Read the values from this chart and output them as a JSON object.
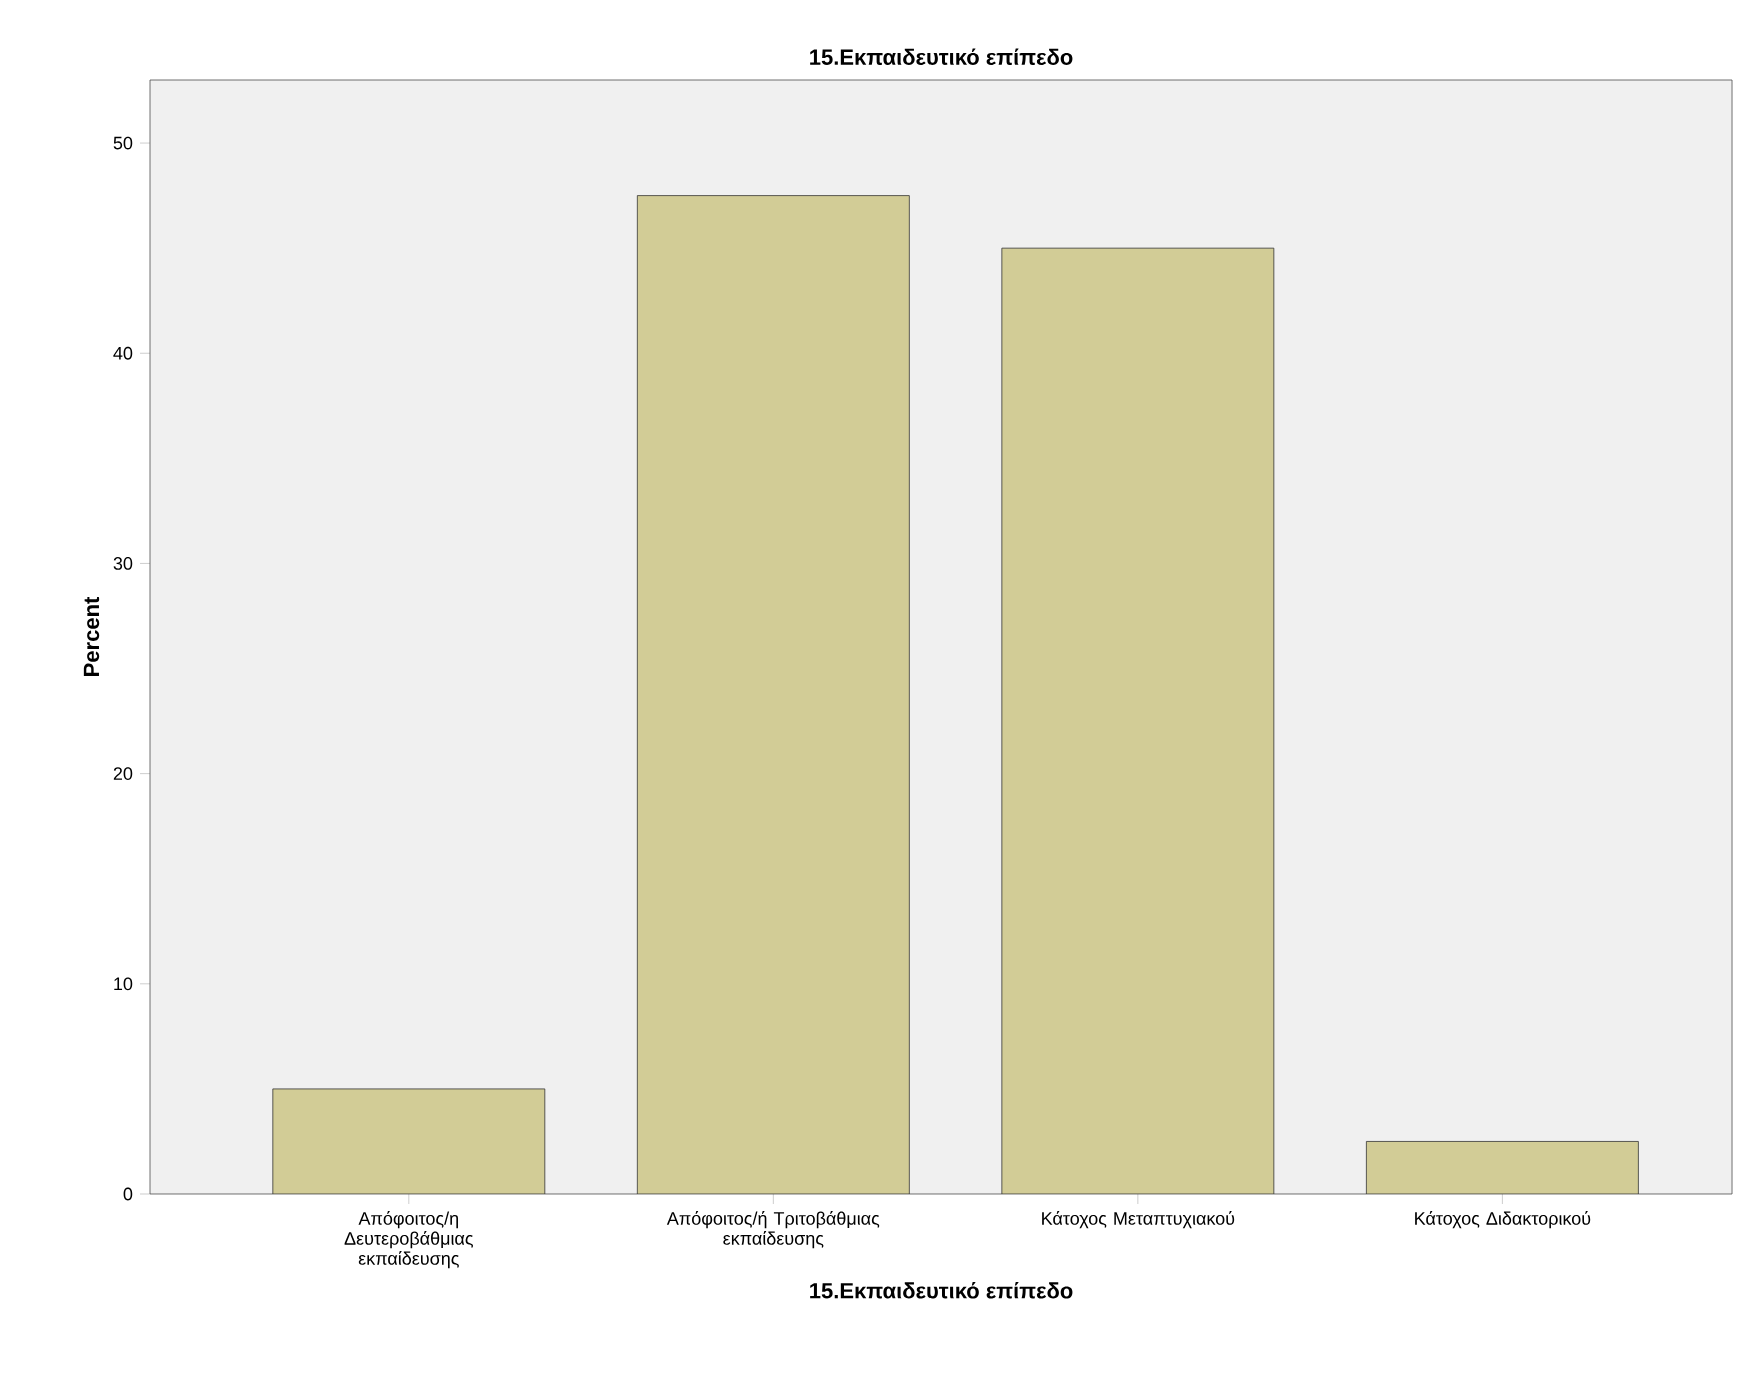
{
  "chart_data": {
    "type": "bar",
    "title": "15.Εκπαιδευτικό επίπεδο",
    "xlabel": "15.Εκπαιδευτικό επίπεδο",
    "ylabel": "Percent",
    "categories": [
      "Απόφοιτος/η Δευτεροβάθμιας εκπαίδευσης",
      "Απόφοιτος/ή Τριτοβάθμιας εκπαίδευσης",
      "Κάτοχος Μεταπτυχιακού",
      "Κάτοχος Διδακτορικού"
    ],
    "values": [
      5,
      47.5,
      45,
      2.5
    ],
    "color": "#d2cc96",
    "ylim": [
      0,
      53
    ],
    "yticks": [
      0,
      10,
      20,
      30,
      40,
      50
    ],
    "grid": false
  }
}
